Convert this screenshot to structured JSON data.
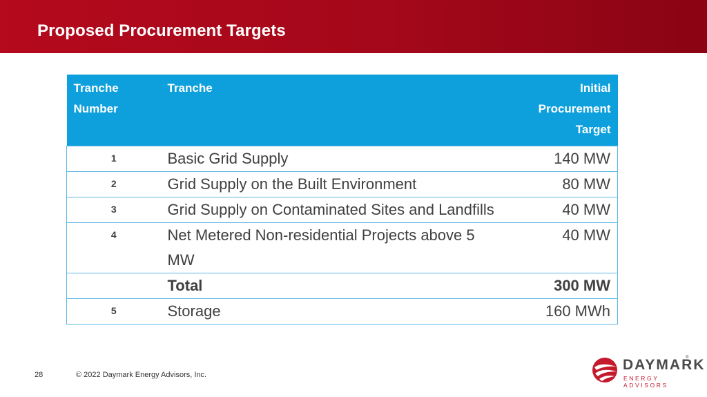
{
  "header": {
    "title": "Proposed Procurement Targets"
  },
  "table": {
    "columns": [
      "Tranche Number",
      "Tranche",
      "Initial Procurement Target"
    ],
    "rows": [
      {
        "number": "1",
        "name": "Basic Grid Supply",
        "target": "140 MW"
      },
      {
        "number": "2",
        "name": "Grid Supply on the Built Environment",
        "target": "80 MW"
      },
      {
        "number": "3",
        "name": "Grid Supply on Contaminated Sites and Landfills",
        "target": "40 MW"
      },
      {
        "number": "4",
        "name": "Net Metered Non-residential Projects above 5 MW",
        "target": "40 MW"
      },
      {
        "number": "",
        "name": "Total",
        "target": "300 MW"
      },
      {
        "number": "5",
        "name": "Storage",
        "target": "160 MWh"
      }
    ]
  },
  "footer": {
    "page_number": "28",
    "copyright": "© 2022 Daymark Energy Advisors, Inc.",
    "logo": {
      "name": "DAYMARK",
      "tagline": "ENERGY ADVISORS",
      "registered": "®",
      "brand_color": "#c5192d"
    }
  },
  "colors": {
    "banner": "#b5091d",
    "table_header": "#0ea0dd",
    "table_border": "#5cb6e4"
  }
}
